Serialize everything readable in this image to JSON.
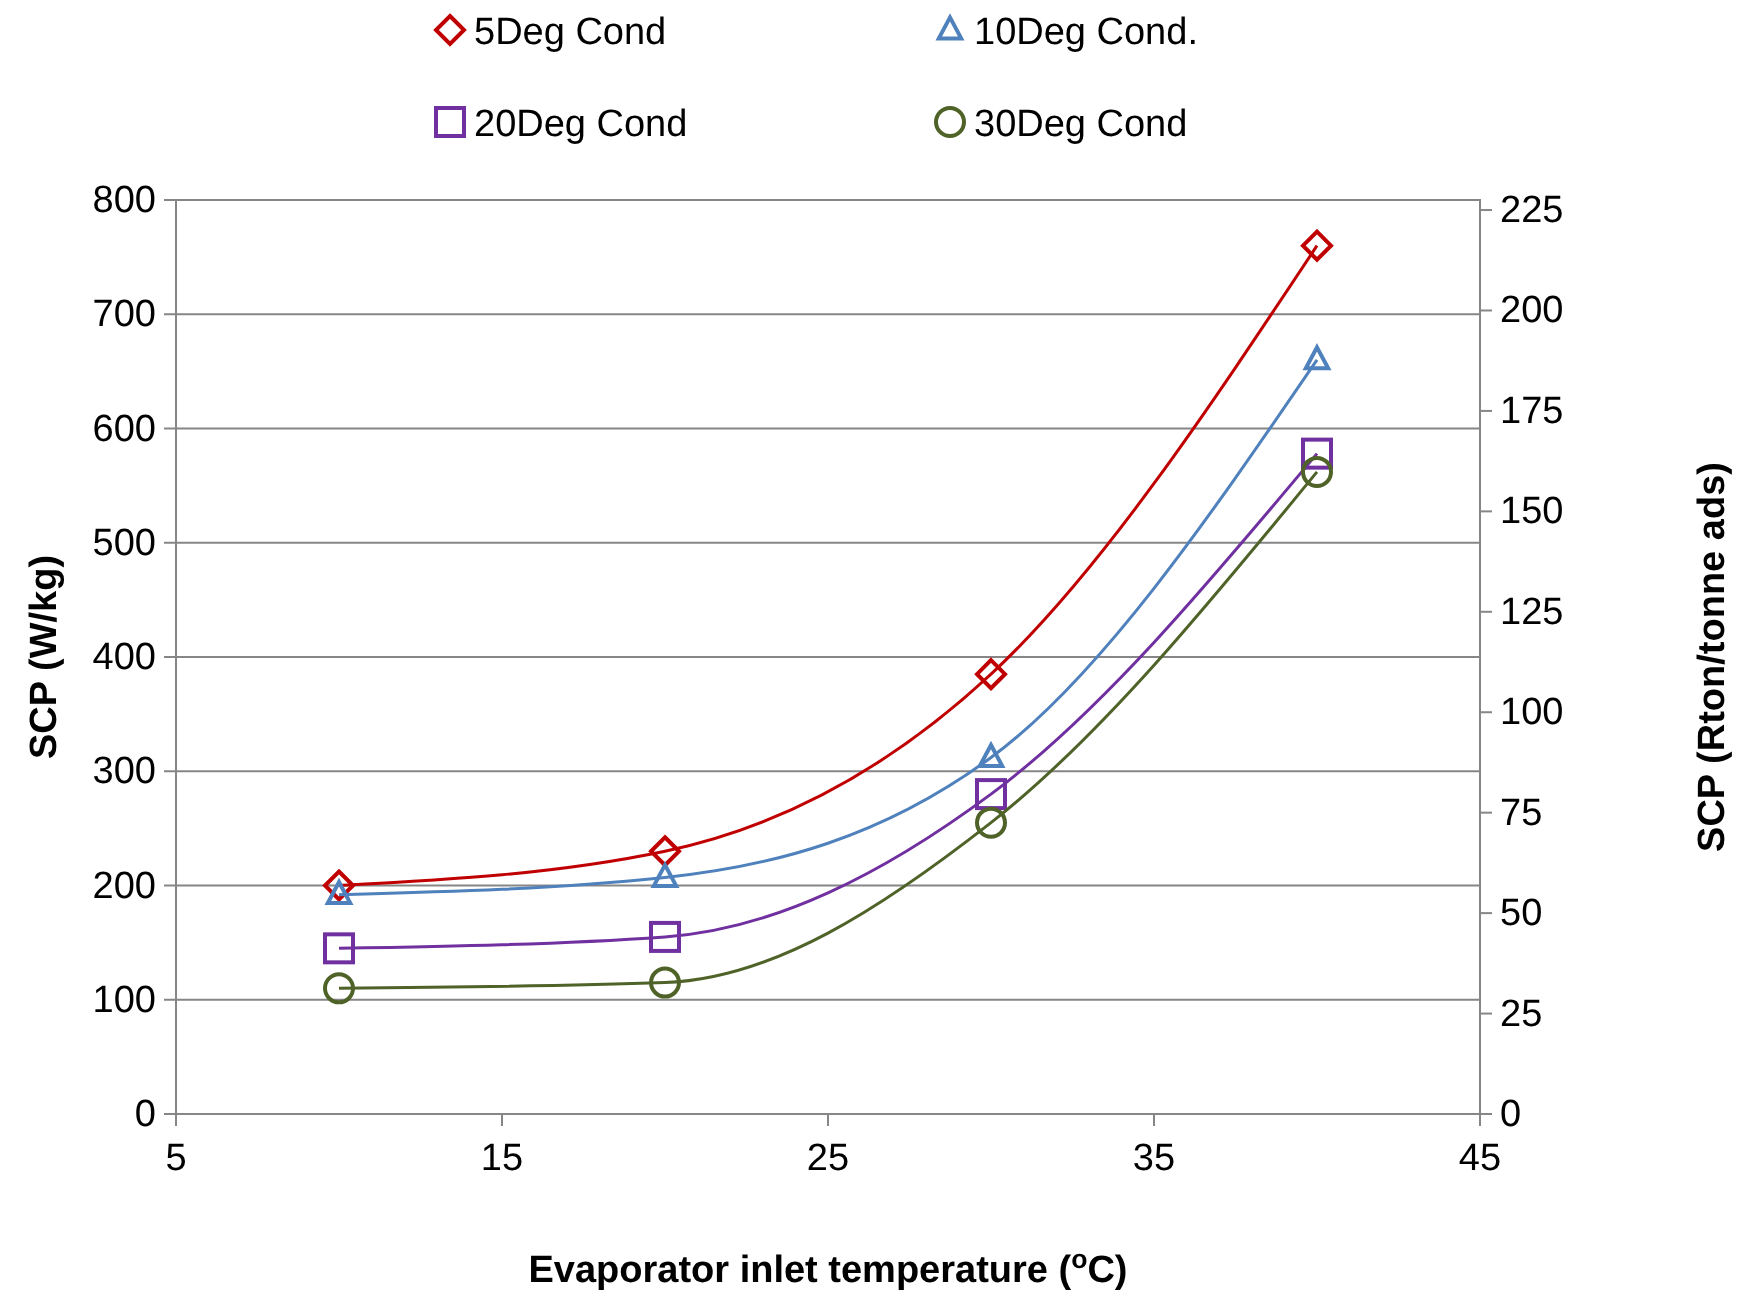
{
  "chart_data": {
    "type": "line",
    "xlabel": "Evaporator inlet temperature ($^{o}$C)",
    "ylabel": "SCP (W/kg)",
    "y2label": "SCP (Rton/tonne ads)",
    "x": [
      10,
      20,
      30,
      40
    ],
    "series": [
      {
        "name": "5Deg Cond",
        "color": "#c00000",
        "marker": "diamond",
        "values": [
          200,
          230,
          385,
          760
        ]
      },
      {
        "name": "10Deg Cond.",
        "color": "#4f81bd",
        "marker": "triangle",
        "values": [
          192,
          207,
          312,
          660
        ]
      },
      {
        "name": "20Deg Cond",
        "color": "#7030a0",
        "marker": "square",
        "values": [
          145,
          155,
          280,
          578
        ]
      },
      {
        "name": "30Deg Cond",
        "color": "#4f6228",
        "marker": "circle",
        "values": [
          110,
          115,
          255,
          562
        ]
      }
    ],
    "xlim": [
      5,
      45
    ],
    "xticks": [
      5,
      15,
      25,
      35,
      45
    ],
    "ylim": [
      0,
      800
    ],
    "yticks": [
      0,
      100,
      200,
      300,
      400,
      500,
      600,
      700,
      800
    ],
    "y2lim": [
      0,
      227.5
    ],
    "y2ticks": [
      0,
      25,
      50,
      75,
      100,
      125,
      150,
      175,
      200,
      225
    ],
    "grid": "y",
    "legend": "top"
  }
}
